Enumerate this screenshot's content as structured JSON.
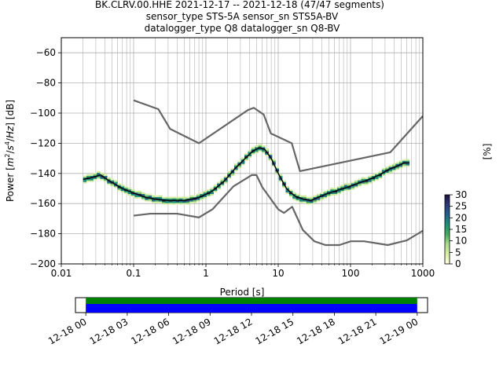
{
  "title_lines": [
    "BK.CLRV.00.HHE   2021-12-17 -- 2021-12-18  (47/47 segments)",
    "sensor_type STS-5A sensor_sn STS5A-BV",
    "datalogger_type Q8 datalogger_sn Q8-BV"
  ],
  "chart_data": {
    "type": "heatmap",
    "xlabel": "Period [s]",
    "ylabel": "Power [m2/s4/Hz] [dB]",
    "ylabel_parts": {
      "prefix": "Power [",
      "m": "m",
      "exp2": "2",
      "slash1": "/",
      "s": "s",
      "exp4": "4",
      "slash2": "/",
      "hz": "Hz",
      "suffix": "] [dB]"
    },
    "xscale": "log",
    "xlim": [
      0.01,
      1000
    ],
    "ylim": [
      -200,
      -50
    ],
    "x_tick_labels": [
      "0.01",
      "0.1",
      "1",
      "10",
      "100",
      "1000"
    ],
    "x_tick_values": [
      0.01,
      0.1,
      1,
      10,
      100,
      1000
    ],
    "y_tick_labels": [
      "−60",
      "−80",
      "−100",
      "−120",
      "−140",
      "−160",
      "−180",
      "−200"
    ],
    "y_tick_values": [
      -60,
      -80,
      -100,
      -120,
      -140,
      -160,
      -180,
      -200
    ],
    "grid": true,
    "colorbar": {
      "label": "[%]",
      "ticks": [
        "0",
        "5",
        "10",
        "15",
        "20",
        "25",
        "30"
      ],
      "tick_values": [
        0,
        5,
        10,
        15,
        20,
        25,
        30
      ],
      "range": [
        0,
        30
      ],
      "colors": [
        "#ffffe0",
        "#d9f0a3",
        "#addd8e",
        "#41ab5d",
        "#1d9179",
        "#21608c",
        "#2c3a7a",
        "#1d1040"
      ]
    },
    "noise_model_high": {
      "x": [
        0.1,
        0.22,
        0.32,
        0.8,
        3.8,
        4.6,
        6.3,
        7.9,
        15.4,
        20,
        354.8,
        10000
      ],
      "y": [
        -91.5,
        -97.4,
        -110.5,
        -120,
        -98,
        -96.5,
        -101,
        -113.5,
        -120,
        -138.5,
        -126,
        -48.5
      ]
    },
    "noise_model_low": {
      "x": [
        0.1,
        0.17,
        0.4,
        0.8,
        1.24,
        2.4,
        4.3,
        5,
        6,
        10,
        12,
        15.6,
        21.9,
        31.6,
        45,
        70,
        101,
        154,
        328,
        600,
        1000
      ],
      "y": [
        -168,
        -166.7,
        -166.7,
        -169.2,
        -163.7,
        -148.6,
        -141.1,
        -141.1,
        -149,
        -163.8,
        -166.2,
        -162.1,
        -177.5,
        -185,
        -187.5,
        -187.5,
        -185,
        -185,
        -187.5,
        -184.4,
        -178
      ]
    },
    "mean_psd": {
      "x": [
        0.02,
        0.025,
        0.03,
        0.035,
        0.04,
        0.05,
        0.07,
        0.1,
        0.15,
        0.2,
        0.3,
        0.5,
        0.8,
        1.2,
        1.8,
        2.5,
        3.5,
        4.5,
        5.5,
        6.5,
        8,
        10,
        13,
        17,
        22,
        28,
        35,
        50,
        80,
        120,
        180,
        250,
        350,
        450,
        550,
        650
      ],
      "y": [
        -144,
        -143,
        -142,
        -141,
        -143,
        -146,
        -150,
        -153,
        -156,
        -157,
        -158,
        -158,
        -156,
        -152,
        -145,
        -137,
        -130,
        -125,
        -123,
        -124,
        -130,
        -140,
        -150,
        -155,
        -157,
        -158,
        -156,
        -153,
        -150,
        -147,
        -144,
        -141,
        -137,
        -135,
        -133,
        -133
      ]
    },
    "time_range_labels": [
      "12-18 00",
      "12-18 03",
      "12-18 06",
      "12-18 09",
      "12-18 12",
      "12-18 15",
      "12-18 18",
      "12-18 21",
      "12-19 00"
    ],
    "time_tick_values": [
      0,
      3,
      6,
      9,
      12,
      15,
      18,
      21,
      24
    ],
    "availability": {
      "start_hour": 0,
      "end_hour": 24,
      "range": [
        -0.75,
        24.75
      ],
      "colors": [
        "#008000",
        "#0000ff"
      ]
    }
  }
}
